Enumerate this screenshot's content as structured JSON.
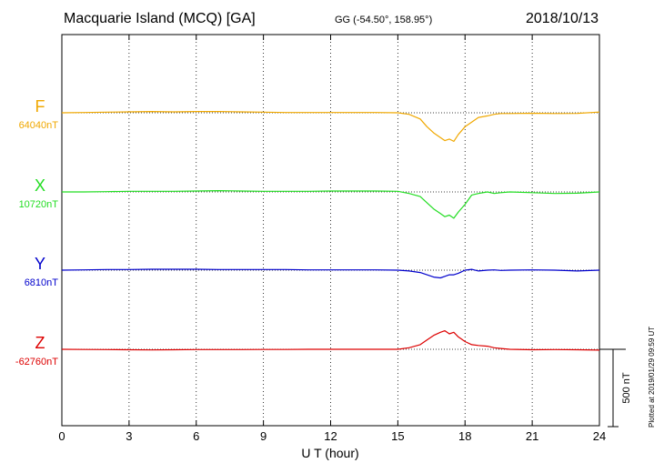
{
  "header": {
    "station": "Macquarie Island (MCQ)  [GA]",
    "coords": "GG (-54.50°, 158.95°)",
    "date": "2018/10/13"
  },
  "plotted_note": "Plotted at 2019/01/29 09:59 UT",
  "chart_data": {
    "type": "line",
    "xlabel": "U T (hour)",
    "xlim": [
      0,
      24
    ],
    "xticks": [
      0,
      3,
      6,
      9,
      12,
      15,
      18,
      21,
      24
    ],
    "grid": true,
    "scale_bar": {
      "label": "500 nT",
      "value_nT": 500
    },
    "series": [
      {
        "name": "F",
        "baseline_label": "64040nT",
        "color": "#f0a800",
        "x": [
          0,
          1,
          2,
          3,
          4,
          5,
          6,
          7,
          8,
          9,
          10,
          11,
          12,
          13,
          14,
          15,
          15.5,
          16,
          16.3,
          16.6,
          16.9,
          17.1,
          17.3,
          17.5,
          17.7,
          18,
          18.3,
          18.6,
          19,
          19.3,
          19.6,
          20,
          21,
          22,
          23,
          24
        ],
        "y": [
          0,
          2,
          4,
          6,
          8,
          6,
          8,
          8,
          6,
          4,
          2,
          2,
          2,
          2,
          2,
          0,
          -10,
          -40,
          -90,
          -130,
          -160,
          -180,
          -170,
          -185,
          -140,
          -90,
          -60,
          -30,
          -20,
          -10,
          -5,
          -5,
          -3,
          -5,
          -4,
          5
        ]
      },
      {
        "name": "X",
        "baseline_label": "10720nT",
        "color": "#22dd22",
        "x": [
          0,
          1,
          2,
          3,
          4,
          5,
          6,
          7,
          8,
          9,
          10,
          11,
          12,
          13,
          14,
          15,
          15.5,
          16,
          16.3,
          16.6,
          16.9,
          17.1,
          17.3,
          17.5,
          17.7,
          18,
          18.3,
          18.6,
          19,
          19.3,
          19.6,
          20,
          21,
          22,
          23,
          24
        ],
        "y": [
          0,
          0,
          2,
          4,
          4,
          4,
          6,
          8,
          6,
          4,
          4,
          4,
          6,
          6,
          6,
          4,
          -10,
          -30,
          -70,
          -110,
          -140,
          -160,
          -150,
          -170,
          -130,
          -80,
          -20,
          -10,
          0,
          -10,
          -5,
          0,
          -5,
          -10,
          -8,
          0
        ]
      },
      {
        "name": "Y",
        "baseline_label": "6810nT",
        "color": "#0000cc",
        "x": [
          0,
          1,
          2,
          3,
          4,
          5,
          6,
          7,
          8,
          9,
          10,
          11,
          12,
          13,
          14,
          15,
          15.5,
          16,
          16.3,
          16.6,
          16.9,
          17.1,
          17.3,
          17.5,
          17.7,
          18,
          18.3,
          18.6,
          19,
          19.3,
          19.6,
          20,
          21,
          22,
          23,
          24
        ],
        "y": [
          0,
          2,
          4,
          4,
          6,
          6,
          6,
          4,
          4,
          4,
          4,
          2,
          2,
          2,
          2,
          0,
          -5,
          -15,
          -30,
          -45,
          -50,
          -40,
          -30,
          -30,
          -20,
          0,
          5,
          -5,
          0,
          2,
          -2,
          0,
          2,
          0,
          -5,
          0
        ]
      },
      {
        "name": "Z",
        "baseline_label": "-62760nT",
        "color": "#dd0000",
        "x": [
          0,
          1,
          2,
          3,
          4,
          5,
          6,
          7,
          8,
          9,
          10,
          11,
          12,
          13,
          14,
          15,
          15.5,
          16,
          16.3,
          16.6,
          16.9,
          17.1,
          17.3,
          17.5,
          17.7,
          18,
          18.3,
          18.6,
          19,
          19.3,
          19.6,
          20,
          21,
          22,
          23,
          24
        ],
        "y": [
          0,
          -1,
          -2,
          -3,
          -4,
          -3,
          -2,
          -2,
          -2,
          -1,
          -1,
          0,
          0,
          0,
          0,
          0,
          10,
          30,
          60,
          90,
          110,
          120,
          100,
          110,
          80,
          50,
          30,
          25,
          20,
          10,
          5,
          0,
          -3,
          -2,
          -3,
          -5
        ]
      }
    ]
  }
}
